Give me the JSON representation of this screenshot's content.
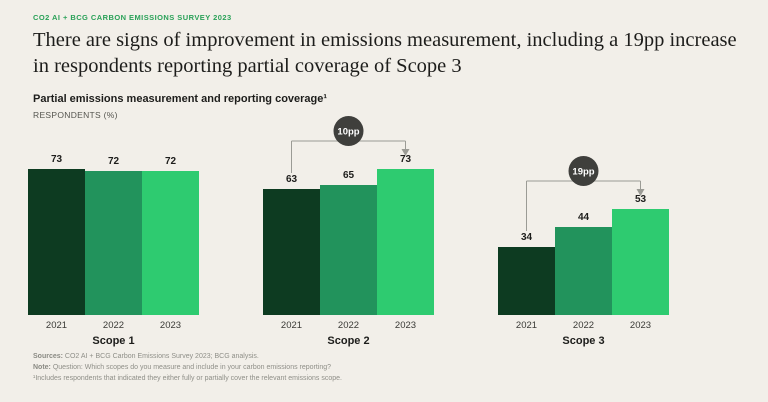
{
  "header": {
    "kicker": "CO2 AI + BCG CARBON EMISSIONS SURVEY 2023",
    "title": "There are signs of improvement in emissions measurement, including a 19pp increase in respondents reporting partial coverage of Scope 3",
    "subtitle": "Partial emissions measurement and reporting coverage¹",
    "unit_label": "RESPONDENTS (%)"
  },
  "chart_data": {
    "type": "bar",
    "title": "Partial emissions measurement and reporting coverage",
    "ylabel": "RESPONDENTS (%)",
    "ylim": [
      0,
      100
    ],
    "grid": false,
    "legend": "none",
    "categories": [
      "2021",
      "2022",
      "2023"
    ],
    "groups": [
      {
        "label": "Scope 1",
        "values": [
          73,
          72,
          72
        ],
        "annotation": null
      },
      {
        "label": "Scope 2",
        "values": [
          63,
          65,
          73
        ],
        "annotation": "10pp"
      },
      {
        "label": "Scope 3",
        "values": [
          34,
          44,
          53
        ],
        "annotation": "19pp"
      }
    ],
    "series_colors": [
      "#0d3b21",
      "#22935c",
      "#2ecb70"
    ],
    "annotation_color": "#3f3f3c",
    "annotation_text_color": "#ffffff",
    "connector_color": "#9b9b95",
    "kicker_color": "#2aa158",
    "background_color": "#f2efe9"
  },
  "footer": {
    "sources_label": "Sources:",
    "sources_text": "CO2 AI + BCG Carbon Emissions Survey 2023; BCG analysis.",
    "note_label": "Note:",
    "note_text": "Question: Which scopes do you measure and include in your carbon emissions reporting?",
    "footnote": "¹Includes respondents that indicated they either fully or partially cover the relevant emissions scope."
  }
}
